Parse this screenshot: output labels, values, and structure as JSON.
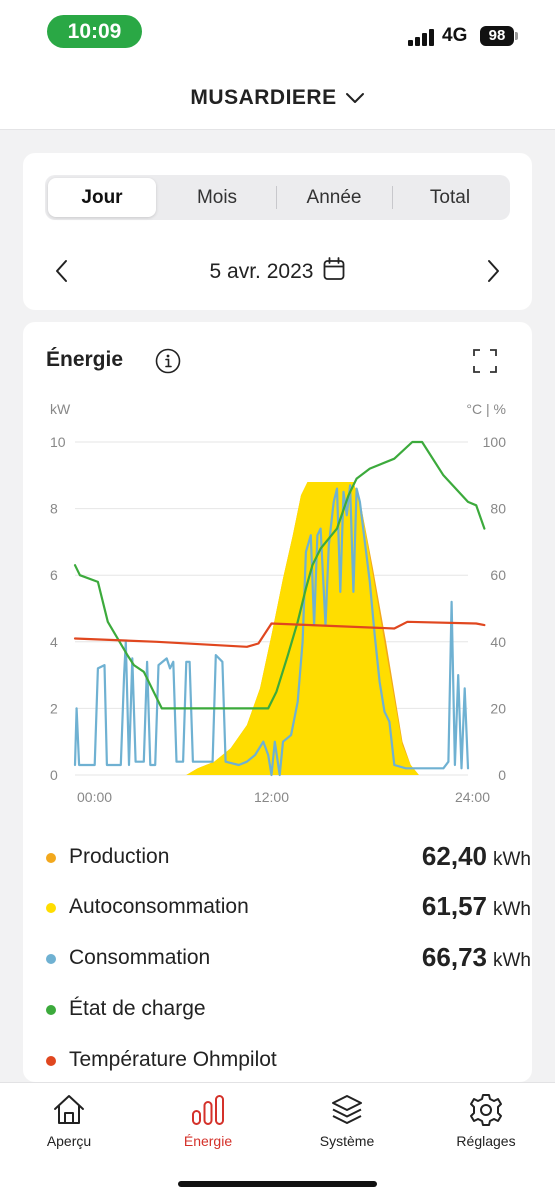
{
  "status_bar": {
    "time": "10:09",
    "network": "4G",
    "battery": "98"
  },
  "header": {
    "site_name": "MUSARDIERE",
    "chevron_icon": "chevron-down-icon"
  },
  "period": {
    "tabs": [
      {
        "label": "Jour",
        "active": true
      },
      {
        "label": "Mois",
        "active": false
      },
      {
        "label": "Année",
        "active": false
      },
      {
        "label": "Total",
        "active": false
      }
    ],
    "date": "5 avr. 2023",
    "icons": {
      "prev": "chevron-left-icon",
      "next": "chevron-right-icon",
      "calendar": "calendar-icon"
    }
  },
  "energy": {
    "title": "Énergie",
    "icons": {
      "info": "info-icon",
      "expand": "expand-icon"
    },
    "legend": [
      {
        "label": "Production",
        "value": "62,40",
        "unit": "kWh",
        "color": "#f2a81d"
      },
      {
        "label": "Autoconsommation",
        "value": "61,57",
        "unit": "kWh",
        "color": "#ffdd00"
      },
      {
        "label": "Consommation",
        "value": "66,73",
        "unit": "kWh",
        "color": "#6fb1d2"
      },
      {
        "label": "État de charge",
        "value": "",
        "unit": "",
        "color": "#3caa3c"
      },
      {
        "label": "Température Ohmpilot",
        "value": "",
        "unit": "",
        "color": "#e0471f"
      }
    ]
  },
  "chart_data": {
    "type": "area",
    "x_unit": "hours",
    "xlim": [
      0,
      24
    ],
    "x_ticks": [
      "00:00",
      "12:00",
      "24:00"
    ],
    "ylabel_left": "kW",
    "ylabel_right": "°C | %",
    "ylim_left": [
      0,
      10
    ],
    "ylim_right": [
      0,
      100
    ],
    "y_ticks_left": [
      0,
      2,
      4,
      6,
      8,
      10
    ],
    "y_ticks_right": [
      0,
      20,
      40,
      60,
      80,
      100
    ],
    "grid": true,
    "series": [
      {
        "name": "Production",
        "axis": "left",
        "style": "area",
        "color": "#f2a81d",
        "points": [
          [
            0,
            0
          ],
          [
            6.8,
            0
          ],
          [
            7.5,
            0.2
          ],
          [
            8.5,
            0.4
          ],
          [
            9.5,
            0.8
          ],
          [
            10.5,
            1.5
          ],
          [
            11.3,
            2.6
          ],
          [
            12,
            4.2
          ],
          [
            12.7,
            5.9
          ],
          [
            13.3,
            7.2
          ],
          [
            13.8,
            8.4
          ],
          [
            14.2,
            8.8
          ],
          [
            17,
            8.8
          ],
          [
            17.5,
            8.0
          ],
          [
            18.2,
            6.2
          ],
          [
            19,
            4.0
          ],
          [
            19.5,
            2.5
          ],
          [
            20,
            1.0
          ],
          [
            20.5,
            0.3
          ],
          [
            21,
            0
          ],
          [
            24,
            0
          ]
        ]
      },
      {
        "name": "Autoconsommation",
        "axis": "left",
        "style": "area",
        "color": "#ffdd00",
        "points": [
          [
            0,
            0
          ],
          [
            6.8,
            0
          ],
          [
            7.5,
            0.2
          ],
          [
            8.5,
            0.4
          ],
          [
            9.5,
            0.8
          ],
          [
            10.5,
            1.5
          ],
          [
            11.3,
            2.6
          ],
          [
            12,
            4.2
          ],
          [
            12.7,
            5.9
          ],
          [
            13.3,
            7.2
          ],
          [
            13.8,
            8.4
          ],
          [
            14.2,
            8.8
          ],
          [
            17,
            8.8
          ],
          [
            17.5,
            8.0
          ],
          [
            18.2,
            6.0
          ],
          [
            19,
            3.7
          ],
          [
            19.5,
            2.3
          ],
          [
            20,
            0.9
          ],
          [
            20.5,
            0.3
          ],
          [
            21,
            0
          ],
          [
            24,
            0
          ]
        ]
      },
      {
        "name": "Consommation",
        "axis": "left",
        "style": "line",
        "color": "#6fb1d2",
        "points": [
          [
            0,
            0.3
          ],
          [
            0.1,
            2.0
          ],
          [
            0.25,
            0.3
          ],
          [
            1.2,
            0.3
          ],
          [
            1.4,
            3.2
          ],
          [
            1.8,
            3.3
          ],
          [
            1.95,
            0.3
          ],
          [
            2.8,
            0.3
          ],
          [
            3,
            3.0
          ],
          [
            3.1,
            4.0
          ],
          [
            3.3,
            0.3
          ],
          [
            3.5,
            3.5
          ],
          [
            3.7,
            0.4
          ],
          [
            4.2,
            0.4
          ],
          [
            4.4,
            3.4
          ],
          [
            4.6,
            0.3
          ],
          [
            4.9,
            0.3
          ],
          [
            5.1,
            3.3
          ],
          [
            5.6,
            3.5
          ],
          [
            5.8,
            3.2
          ],
          [
            6,
            3.4
          ],
          [
            6.2,
            0.4
          ],
          [
            6.6,
            0.4
          ],
          [
            6.8,
            3.4
          ],
          [
            7,
            3.4
          ],
          [
            7.2,
            0.4
          ],
          [
            8.4,
            0.4
          ],
          [
            8.6,
            3.6
          ],
          [
            9,
            3.4
          ],
          [
            9.2,
            0.4
          ],
          [
            10,
            0.3
          ],
          [
            10.5,
            0.4
          ],
          [
            11,
            0.6
          ],
          [
            11.5,
            1.0
          ],
          [
            11.8,
            0.6
          ],
          [
            12,
            0
          ],
          [
            12.2,
            1.0
          ],
          [
            12.5,
            0
          ],
          [
            12.7,
            1.0
          ],
          [
            13.2,
            1.2
          ],
          [
            13.6,
            2.2
          ],
          [
            13.9,
            4.0
          ],
          [
            14.1,
            6.7
          ],
          [
            14.4,
            7.2
          ],
          [
            14.6,
            4.5
          ],
          [
            14.8,
            7.2
          ],
          [
            15,
            7.4
          ],
          [
            15.3,
            4.5
          ],
          [
            15.5,
            6.9
          ],
          [
            15.8,
            8.2
          ],
          [
            16,
            8.6
          ],
          [
            16.2,
            5.5
          ],
          [
            16.4,
            8.5
          ],
          [
            16.6,
            7.8
          ],
          [
            16.8,
            8.7
          ],
          [
            17,
            5.5
          ],
          [
            17.2,
            8.6
          ],
          [
            17.4,
            8.2
          ],
          [
            17.6,
            7.4
          ],
          [
            18.0,
            5.8
          ],
          [
            18.3,
            4.2
          ],
          [
            18.6,
            2.8
          ],
          [
            18.9,
            1.9
          ],
          [
            19.2,
            1.6
          ],
          [
            19.5,
            0.3
          ],
          [
            20.2,
            0.2
          ],
          [
            21,
            0.2
          ],
          [
            22.5,
            0.2
          ],
          [
            22.8,
            0.4
          ],
          [
            23,
            5.2
          ],
          [
            23.2,
            0.3
          ],
          [
            23.4,
            3.0
          ],
          [
            23.6,
            0.2
          ],
          [
            23.8,
            2.6
          ],
          [
            24,
            0.2
          ]
        ]
      },
      {
        "name": "État de charge",
        "axis": "right",
        "style": "line",
        "color": "#3caa3c",
        "points": [
          [
            0,
            63
          ],
          [
            0.3,
            60
          ],
          [
            1.4,
            58
          ],
          [
            2.0,
            46
          ],
          [
            3.2,
            36
          ],
          [
            3.6,
            33
          ],
          [
            4.2,
            31
          ],
          [
            5.3,
            20
          ],
          [
            6.5,
            20
          ],
          [
            8.0,
            20
          ],
          [
            9.0,
            20
          ],
          [
            11.8,
            20
          ],
          [
            12.3,
            25
          ],
          [
            13.0,
            36
          ],
          [
            13.6,
            46
          ],
          [
            14.1,
            56
          ],
          [
            14.5,
            63
          ],
          [
            15,
            68
          ],
          [
            16,
            74
          ],
          [
            16.7,
            84
          ],
          [
            17.2,
            89
          ],
          [
            18,
            92
          ],
          [
            19.5,
            95
          ],
          [
            20.6,
            100
          ],
          [
            21.2,
            100
          ],
          [
            22.5,
            90
          ],
          [
            24,
            82
          ],
          [
            24.5,
            81
          ],
          [
            25,
            74
          ]
        ]
      },
      {
        "name": "Température Ohmpilot",
        "axis": "right",
        "style": "line",
        "color": "#e0471f",
        "points": [
          [
            0,
            41
          ],
          [
            5,
            40
          ],
          [
            10.5,
            38.5
          ],
          [
            11.2,
            39.5
          ],
          [
            12,
            45.5
          ],
          [
            19.5,
            44
          ],
          [
            20.3,
            46
          ],
          [
            24.5,
            45.5
          ],
          [
            25,
            45
          ]
        ]
      }
    ]
  },
  "tabbar": {
    "items": [
      {
        "label": "Aperçu",
        "icon": "home-icon",
        "active": false
      },
      {
        "label": "Énergie",
        "icon": "bar-chart-icon",
        "active": true
      },
      {
        "label": "Système",
        "icon": "layers-icon",
        "active": false
      },
      {
        "label": "Réglages",
        "icon": "gear-icon",
        "active": false
      }
    ]
  },
  "colors": {
    "accent_red": "#d4312a",
    "status_green": "#2aa845"
  }
}
